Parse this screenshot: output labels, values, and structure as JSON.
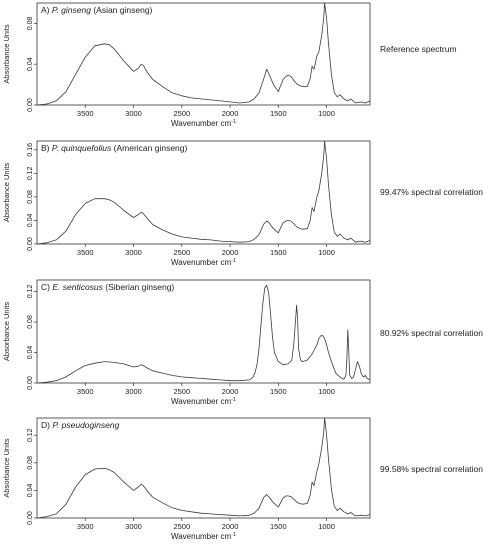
{
  "chart_data": [
    {
      "type": "line",
      "panel_label": "A) ",
      "species": "P. ginseng",
      "common_name": " (Asian ginseng)",
      "annotation": "Reference spectrum",
      "xlabel": "Wavenumber cm",
      "xlabel_sup": "-1",
      "ylabel": "Absorbance Units",
      "xlim": [
        4000,
        550
      ],
      "ylim": [
        0,
        0.1
      ],
      "xticks": [
        "3500",
        "3000",
        "2500",
        "2000",
        "1500",
        "1000"
      ],
      "yticks": [
        "0.00",
        "0.04",
        "0.08"
      ],
      "ytick_values": [
        0,
        0.04,
        0.08
      ],
      "x": [
        4000,
        3900,
        3800,
        3700,
        3600,
        3500,
        3400,
        3300,
        3250,
        3200,
        3100,
        3000,
        2950,
        2920,
        2900,
        2850,
        2800,
        2700,
        2600,
        2500,
        2400,
        2300,
        2200,
        2100,
        2000,
        1900,
        1800,
        1750,
        1700,
        1650,
        1620,
        1600,
        1550,
        1500,
        1480,
        1450,
        1420,
        1400,
        1370,
        1330,
        1300,
        1250,
        1200,
        1170,
        1150,
        1130,
        1100,
        1080,
        1050,
        1030,
        1020,
        1000,
        980,
        950,
        920,
        890,
        860,
        820,
        780,
        750,
        700,
        650,
        600,
        550
      ],
      "values": [
        0.0,
        0.001,
        0.004,
        0.013,
        0.03,
        0.047,
        0.058,
        0.06,
        0.059,
        0.055,
        0.043,
        0.033,
        0.036,
        0.04,
        0.039,
        0.031,
        0.025,
        0.018,
        0.012,
        0.009,
        0.007,
        0.006,
        0.005,
        0.004,
        0.003,
        0.002,
        0.003,
        0.006,
        0.012,
        0.026,
        0.035,
        0.031,
        0.02,
        0.013,
        0.018,
        0.025,
        0.028,
        0.029,
        0.028,
        0.023,
        0.02,
        0.018,
        0.018,
        0.026,
        0.038,
        0.035,
        0.048,
        0.052,
        0.068,
        0.085,
        0.1,
        0.085,
        0.06,
        0.03,
        0.012,
        0.008,
        0.01,
        0.006,
        0.004,
        0.006,
        0.002,
        0.003,
        0.002,
        0.004
      ]
    },
    {
      "type": "line",
      "panel_label": "B) ",
      "species": "P. quinquefolius",
      "common_name": " (American ginseng)",
      "annotation": "99.47% spectral correlation",
      "xlabel": "Wavenumber cm",
      "xlabel_sup": "-1",
      "ylabel": "Absorbance Units",
      "xlim": [
        4000,
        550
      ],
      "ylim": [
        0,
        0.175
      ],
      "xticks": [
        "3500",
        "3000",
        "2500",
        "2000",
        "1500",
        "1000"
      ],
      "yticks": [
        "0.00",
        "0.04",
        "0.08",
        "0.12",
        "0.16"
      ],
      "ytick_values": [
        0,
        0.04,
        0.08,
        0.12,
        0.16
      ],
      "x": [
        4000,
        3900,
        3800,
        3700,
        3600,
        3500,
        3400,
        3300,
        3250,
        3200,
        3100,
        3000,
        2950,
        2920,
        2900,
        2850,
        2800,
        2700,
        2600,
        2500,
        2400,
        2300,
        2200,
        2100,
        2000,
        1900,
        1800,
        1750,
        1700,
        1650,
        1620,
        1600,
        1550,
        1500,
        1480,
        1450,
        1420,
        1400,
        1370,
        1330,
        1300,
        1250,
        1200,
        1170,
        1150,
        1130,
        1100,
        1080,
        1050,
        1030,
        1020,
        1000,
        980,
        950,
        920,
        890,
        860,
        820,
        780,
        750,
        700,
        650,
        600,
        550
      ],
      "values": [
        0.0,
        0.002,
        0.007,
        0.022,
        0.05,
        0.069,
        0.077,
        0.077,
        0.075,
        0.071,
        0.057,
        0.045,
        0.05,
        0.054,
        0.052,
        0.042,
        0.033,
        0.024,
        0.017,
        0.012,
        0.01,
        0.008,
        0.007,
        0.005,
        0.004,
        0.003,
        0.004,
        0.008,
        0.016,
        0.034,
        0.039,
        0.037,
        0.026,
        0.019,
        0.026,
        0.036,
        0.039,
        0.04,
        0.039,
        0.033,
        0.028,
        0.025,
        0.026,
        0.04,
        0.062,
        0.055,
        0.08,
        0.09,
        0.12,
        0.15,
        0.175,
        0.145,
        0.1,
        0.05,
        0.02,
        0.013,
        0.017,
        0.01,
        0.007,
        0.01,
        0.003,
        0.005,
        0.003,
        0.006
      ]
    },
    {
      "type": "line",
      "panel_label": "C) ",
      "species": "E. senticosus",
      "common_name": " (Siberian ginseng)",
      "annotation": "80.92% spectral correlation",
      "xlabel": "Wavenumber cm",
      "xlabel_sup": "-1",
      "ylabel": "Absorbance Units",
      "xlim": [
        4000,
        550
      ],
      "ylim": [
        0,
        0.135
      ],
      "xticks": [
        "3500",
        "3000",
        "2500",
        "2000",
        "1500",
        "1000"
      ],
      "yticks": [
        "0.00",
        "0.04",
        "0.08",
        "0.12"
      ],
      "ytick_values": [
        0,
        0.04,
        0.08,
        0.12
      ],
      "x": [
        4000,
        3900,
        3800,
        3700,
        3600,
        3500,
        3400,
        3300,
        3200,
        3100,
        3000,
        2950,
        2920,
        2900,
        2850,
        2800,
        2700,
        2600,
        2500,
        2400,
        2300,
        2200,
        2100,
        2000,
        1900,
        1800,
        1760,
        1740,
        1720,
        1700,
        1680,
        1660,
        1640,
        1620,
        1600,
        1580,
        1560,
        1540,
        1500,
        1450,
        1400,
        1360,
        1340,
        1320,
        1310,
        1300,
        1290,
        1270,
        1250,
        1200,
        1150,
        1100,
        1080,
        1060,
        1040,
        1020,
        1000,
        980,
        950,
        920,
        900,
        880,
        860,
        840,
        820,
        800,
        790,
        780,
        770,
        760,
        740,
        720,
        700,
        680,
        660,
        640,
        620,
        600,
        580,
        550
      ],
      "values": [
        0.0,
        0.001,
        0.003,
        0.008,
        0.016,
        0.023,
        0.026,
        0.028,
        0.027,
        0.025,
        0.021,
        0.022,
        0.024,
        0.023,
        0.019,
        0.016,
        0.013,
        0.01,
        0.008,
        0.007,
        0.006,
        0.005,
        0.004,
        0.003,
        0.003,
        0.004,
        0.008,
        0.014,
        0.025,
        0.045,
        0.075,
        0.105,
        0.125,
        0.128,
        0.118,
        0.09,
        0.06,
        0.04,
        0.028,
        0.024,
        0.025,
        0.03,
        0.05,
        0.085,
        0.102,
        0.085,
        0.045,
        0.03,
        0.028,
        0.03,
        0.038,
        0.05,
        0.058,
        0.062,
        0.062,
        0.058,
        0.05,
        0.04,
        0.028,
        0.018,
        0.012,
        0.01,
        0.008,
        0.006,
        0.005,
        0.01,
        0.03,
        0.07,
        0.04,
        0.01,
        0.006,
        0.008,
        0.018,
        0.028,
        0.022,
        0.012,
        0.008,
        0.01,
        0.006,
        0.004
      ]
    },
    {
      "type": "line",
      "panel_label": "D) ",
      "species": "P. pseudoginseng",
      "common_name": "",
      "annotation": "99.58% spectral correlation",
      "xlabel": "Wavenumber cm",
      "xlabel_sup": "-1",
      "ylabel": "Absorbance Units",
      "xlim": [
        4000,
        550
      ],
      "ylim": [
        0,
        0.145
      ],
      "xticks": [
        "3500",
        "3000",
        "2500",
        "2000",
        "1500",
        "1000"
      ],
      "yticks": [
        "0.00",
        "0.04",
        "0.08",
        "0.12"
      ],
      "ytick_values": [
        0,
        0.04,
        0.08,
        0.12
      ],
      "x": [
        4000,
        3900,
        3800,
        3700,
        3600,
        3500,
        3400,
        3300,
        3250,
        3200,
        3100,
        3000,
        2950,
        2920,
        2900,
        2850,
        2800,
        2700,
        2600,
        2500,
        2400,
        2300,
        2200,
        2100,
        2000,
        1900,
        1800,
        1750,
        1700,
        1650,
        1620,
        1600,
        1550,
        1500,
        1480,
        1450,
        1420,
        1400,
        1370,
        1330,
        1300,
        1250,
        1200,
        1170,
        1150,
        1130,
        1100,
        1080,
        1050,
        1030,
        1020,
        1000,
        980,
        950,
        920,
        890,
        860,
        820,
        780,
        750,
        700,
        650,
        600,
        550
      ],
      "values": [
        0.0,
        0.002,
        0.006,
        0.02,
        0.045,
        0.063,
        0.071,
        0.072,
        0.07,
        0.066,
        0.052,
        0.04,
        0.045,
        0.049,
        0.047,
        0.038,
        0.03,
        0.022,
        0.015,
        0.011,
        0.009,
        0.007,
        0.006,
        0.005,
        0.004,
        0.003,
        0.004,
        0.007,
        0.014,
        0.03,
        0.034,
        0.031,
        0.022,
        0.016,
        0.021,
        0.029,
        0.032,
        0.032,
        0.031,
        0.026,
        0.022,
        0.02,
        0.021,
        0.033,
        0.052,
        0.047,
        0.068,
        0.078,
        0.102,
        0.124,
        0.145,
        0.12,
        0.085,
        0.042,
        0.017,
        0.011,
        0.014,
        0.009,
        0.006,
        0.008,
        0.003,
        0.004,
        0.003,
        0.005
      ]
    }
  ]
}
